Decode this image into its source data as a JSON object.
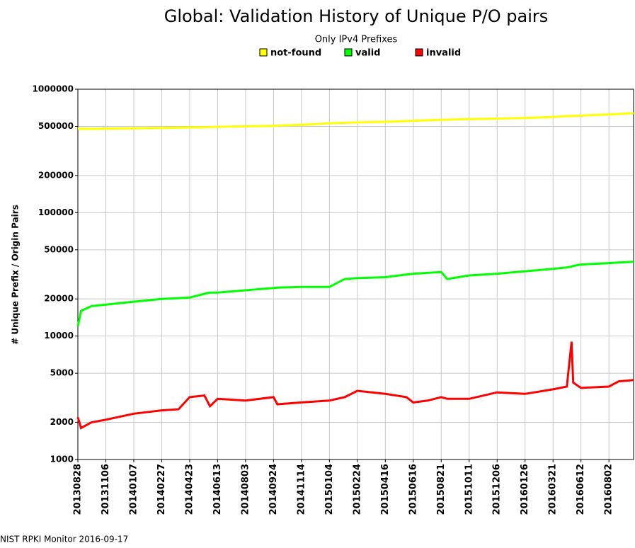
{
  "chart_data": {
    "type": "line",
    "title": "Global: Validation History of Unique P/O pairs",
    "subtitle": "Only IPv4 Prefixes",
    "y_label": "# Unique Prefix / Origin Pairs",
    "footer": "NIST RPKI Monitor 2016-09-17",
    "log_scale": true,
    "grid": true,
    "legend": "top",
    "x": [
      "20130828",
      "20130905",
      "20131001",
      "20131106",
      "20140107",
      "20140227",
      "20140401",
      "20140423",
      "20140520",
      "20140530",
      "20140613",
      "20140803",
      "20140924",
      "20141001",
      "20141114",
      "20150104",
      "20150201",
      "20150224",
      "20150416",
      "20150601",
      "20150616",
      "20150720",
      "20150821",
      "20150901",
      "20151011",
      "20151206",
      "20160126",
      "20160321",
      "20160501",
      "20160515",
      "20160520",
      "20160612",
      "20160802",
      "20160820",
      "20160916"
    ],
    "xlim": [
      "20130828",
      "20160916"
    ],
    "xticks": [
      "20130828",
      "20131106",
      "20140107",
      "20140227",
      "20140423",
      "20140613",
      "20140803",
      "20140924",
      "20141114",
      "20150104",
      "20150224",
      "20150416",
      "20150616",
      "20150821",
      "20151011",
      "20151206",
      "20160126",
      "20160321",
      "20160612",
      "20160802"
    ],
    "ylim": [
      1000,
      1000000
    ],
    "yticks": [
      1000,
      2000,
      5000,
      10000,
      20000,
      50000,
      100000,
      200000,
      500000,
      1000000
    ],
    "series": [
      {
        "name": "not-found",
        "color": "#ffff00",
        "values": [
          480000,
          478000,
          476000,
          480000,
          482000,
          485000,
          488000,
          490000,
          492000,
          494000,
          496000,
          500000,
          505000,
          507000,
          515000,
          530000,
          535000,
          538000,
          545000,
          552000,
          555000,
          560000,
          565000,
          566000,
          572000,
          578000,
          585000,
          595000,
          605000,
          607000,
          608000,
          612000,
          625000,
          630000,
          640000
        ]
      },
      {
        "name": "valid",
        "color": "#00ff00",
        "values": [
          12000,
          16000,
          17500,
          18000,
          19000,
          20000,
          20300,
          20500,
          22000,
          22500,
          22500,
          23500,
          24500,
          24700,
          25000,
          25000,
          29000,
          29500,
          30000,
          31500,
          32000,
          32500,
          33000,
          29000,
          31000,
          32000,
          33500,
          35000,
          36000,
          36500,
          37000,
          38000,
          39000,
          39500,
          40000
        ]
      },
      {
        "name": "invalid",
        "color": "#ff0000",
        "values": [
          2200,
          1800,
          2000,
          2100,
          2350,
          2500,
          2550,
          3200,
          3300,
          2700,
          3100,
          3000,
          3200,
          2800,
          2900,
          3000,
          3200,
          3600,
          3400,
          3200,
          2900,
          3000,
          3200,
          3100,
          3100,
          3500,
          3400,
          3700,
          3900,
          9000,
          4200,
          3800,
          3900,
          4300,
          4400
        ]
      }
    ]
  }
}
